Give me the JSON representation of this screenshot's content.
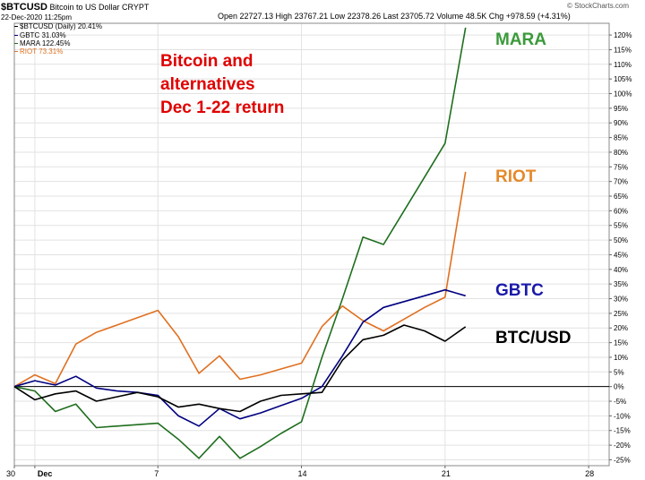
{
  "header": {
    "symbol": "$BTCUSD",
    "name": "Bitcoin to US Dollar",
    "exchange": "CRYPT",
    "date": "22-Dec-2020 11:25pm",
    "stats": "Open 22727.13  High 23767.21  Low 22378.26  Last 23705.72  Volume 48.5K  Chg +978.59 (+4.31%)",
    "copyright": "© StockCharts.com"
  },
  "annotation": {
    "line1": "Bitcoin and",
    "line2": "alternatives",
    "line3": "Dec 1-22 return"
  },
  "chart_data": {
    "type": "line",
    "x_day_numbers": [
      0,
      1,
      2,
      3,
      4,
      5,
      6,
      7,
      8,
      9,
      10,
      11,
      12,
      13,
      14,
      15,
      16,
      17,
      18,
      19,
      20,
      21,
      22
    ],
    "x_tick_labels": [
      "30",
      "Dec",
      "7",
      "14",
      "21",
      "28"
    ],
    "x_tick_days": [
      0,
      1,
      7,
      14,
      21,
      28
    ],
    "y_tick_labels": [
      "-25%",
      "-20%",
      "-15%",
      "-10%",
      "-5%",
      "0%",
      "5%",
      "10%",
      "15%",
      "20%",
      "25%",
      "30%",
      "35%",
      "40%",
      "45%",
      "50%",
      "55%",
      "60%",
      "65%",
      "70%",
      "75%",
      "80%",
      "85%",
      "90%",
      "95%",
      "100%",
      "105%",
      "110%",
      "115%",
      "120%"
    ],
    "ylim": [
      -27,
      124
    ],
    "xlim": [
      0,
      29
    ],
    "legend": [
      "$BTCUSD (Daily) 20.41%",
      "GBTC 31.03%",
      "MARA 122.45%",
      "RIOT 73.31%"
    ],
    "series": [
      {
        "name": "BTC/USD",
        "color": "#000000",
        "values": [
          0,
          -4.5,
          -2.5,
          -1.5,
          -5,
          -3.5,
          -2,
          -3.5,
          -7,
          -6,
          -7.5,
          -8.5,
          -5,
          -3,
          -2.5,
          -2,
          9,
          16,
          17.5,
          21,
          19,
          15.5,
          20.4
        ]
      },
      {
        "name": "GBTC",
        "color": "#000080",
        "values": [
          0,
          2,
          0.5,
          3.5,
          -0.5,
          -1.5,
          -2,
          -3,
          -10,
          -13.5,
          -7.5,
          -11,
          -9,
          -6.5,
          -4,
          0,
          10.5,
          22,
          27,
          29,
          31,
          33,
          31
        ]
      },
      {
        "name": "MARA",
        "color": "#1e6e1e",
        "values": [
          0,
          -1.5,
          -8.5,
          -6,
          -14,
          -13.5,
          -13,
          -12.5,
          -18,
          -24.5,
          -17,
          -24.5,
          -20.5,
          -16,
          -12,
          10,
          30,
          51,
          48.5,
          60,
          71.5,
          83,
          122.5
        ]
      },
      {
        "name": "RIOT",
        "color": "#e07020",
        "values": [
          0,
          4,
          1,
          14.5,
          18.5,
          21,
          23.5,
          26,
          17,
          4.5,
          10.5,
          2.5,
          4,
          6,
          8,
          20.5,
          27.5,
          22.5,
          19,
          23,
          27,
          30.5,
          73.3
        ]
      }
    ]
  },
  "series_labels": [
    {
      "text": "MARA",
      "color": "#3a9a3a"
    },
    {
      "text": "RIOT",
      "color": "#e58a2a"
    },
    {
      "text": "GBTC",
      "color": "#1a1aaa"
    },
    {
      "text": "BTC/USD",
      "color": "#000000"
    }
  ]
}
